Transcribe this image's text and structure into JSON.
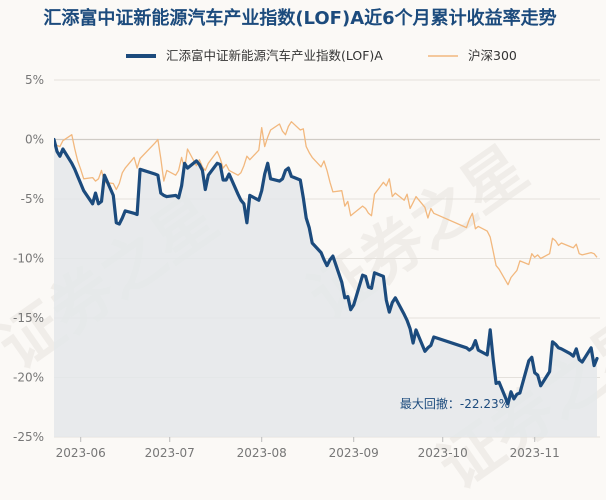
{
  "chart_data": {
    "type": "line",
    "title": "汇添富中证新能源汽车产业指数(LOF)A近6个月累计收益率走势",
    "watermark": "证券之星",
    "ylim": [
      -25,
      5
    ],
    "y_ticks": [
      5,
      0,
      -5,
      -10,
      -15,
      -20,
      -25
    ],
    "y_tick_labels": [
      "5%",
      "0%",
      "-5%",
      "-10%",
      "-15%",
      "-20%",
      "-25%"
    ],
    "x_range": [
      "2023-05-23",
      "2023-11-23"
    ],
    "x_ticks": [
      "2023-06-01",
      "2023-07-01",
      "2023-08-01",
      "2023-09-01",
      "2023-10-01",
      "2023-11-01"
    ],
    "x_tick_labels": [
      "2023-06",
      "2023-07",
      "2023-08",
      "2023-09",
      "2023-10",
      "2023-11"
    ],
    "legend_position": "top-center",
    "grid": "horizontal",
    "colors": {
      "fund": "#1c4b7d",
      "index": "#f2b87e",
      "fill": "#e4e8ea",
      "grid": "#e4e1dc",
      "title": "#1c4b7d",
      "tick": "#777777",
      "annotation": "#1c4b7d"
    },
    "annotation": {
      "label": "最大回撤：-22.23%",
      "value": -22.23,
      "at": "2023-10-23"
    },
    "series": [
      {
        "name": "汇添富中证新能源汽车产业指数(LOF)A",
        "points": [
          [
            "2023-05-23",
            0
          ],
          [
            "2023-05-24",
            -1
          ],
          [
            "2023-05-25",
            -1.4
          ],
          [
            "2023-05-26",
            -0.8
          ],
          [
            "2023-05-29",
            -2
          ],
          [
            "2023-05-30",
            -2.5
          ],
          [
            "2023-05-31",
            -3.1
          ],
          [
            "2023-06-01",
            -3.7
          ],
          [
            "2023-06-02",
            -4.3
          ],
          [
            "2023-06-05",
            -5.4
          ],
          [
            "2023-06-06",
            -4.5
          ],
          [
            "2023-06-07",
            -5.4
          ],
          [
            "2023-06-08",
            -5.2
          ],
          [
            "2023-06-09",
            -3
          ],
          [
            "2023-06-12",
            -4.7
          ],
          [
            "2023-06-13",
            -7
          ],
          [
            "2023-06-14",
            -7.1
          ],
          [
            "2023-06-15",
            -6.6
          ],
          [
            "2023-06-16",
            -6
          ],
          [
            "2023-06-19",
            -6.2
          ],
          [
            "2023-06-20",
            -6.3
          ],
          [
            "2023-06-21",
            -2.5
          ],
          [
            "2023-06-26",
            -2.9
          ],
          [
            "2023-06-27",
            -3
          ],
          [
            "2023-06-28",
            -4.5
          ],
          [
            "2023-06-29",
            -4.7
          ],
          [
            "2023-06-30",
            -4.8
          ],
          [
            "2023-07-03",
            -4.7
          ],
          [
            "2023-07-04",
            -4.9
          ],
          [
            "2023-07-05",
            -3.9
          ],
          [
            "2023-07-06",
            -2
          ],
          [
            "2023-07-07",
            -2.4
          ],
          [
            "2023-07-10",
            -1.8
          ],
          [
            "2023-07-11",
            -2.1
          ],
          [
            "2023-07-12",
            -2.6
          ],
          [
            "2023-07-13",
            -4.2
          ],
          [
            "2023-07-14",
            -3
          ],
          [
            "2023-07-17",
            -2
          ],
          [
            "2023-07-18",
            -2.1
          ],
          [
            "2023-07-19",
            -3.4
          ],
          [
            "2023-07-20",
            -3.4
          ],
          [
            "2023-07-21",
            -2.9
          ],
          [
            "2023-07-24",
            -4.6
          ],
          [
            "2023-07-25",
            -5.1
          ],
          [
            "2023-07-26",
            -5.4
          ],
          [
            "2023-07-27",
            -7
          ],
          [
            "2023-07-28",
            -4.7
          ],
          [
            "2023-07-31",
            -5.1
          ],
          [
            "2023-08-01",
            -4.3
          ],
          [
            "2023-08-02",
            -2.9
          ],
          [
            "2023-08-03",
            -2
          ],
          [
            "2023-08-04",
            -3.3
          ],
          [
            "2023-08-07",
            -3.5
          ],
          [
            "2023-08-08",
            -3.3
          ],
          [
            "2023-08-09",
            -2.6
          ],
          [
            "2023-08-10",
            -2.4
          ],
          [
            "2023-08-11",
            -3.1
          ],
          [
            "2023-08-14",
            -3.4
          ],
          [
            "2023-08-15",
            -4.9
          ],
          [
            "2023-08-16",
            -6.6
          ],
          [
            "2023-08-17",
            -7.4
          ],
          [
            "2023-08-18",
            -8.7
          ],
          [
            "2023-08-21",
            -9.5
          ],
          [
            "2023-08-22",
            -10.1
          ],
          [
            "2023-08-23",
            -10.6
          ],
          [
            "2023-08-24",
            -10.1
          ],
          [
            "2023-08-25",
            -9.8
          ],
          [
            "2023-08-28",
            -12
          ],
          [
            "2023-08-29",
            -13.3
          ],
          [
            "2023-08-30",
            -13.2
          ],
          [
            "2023-08-31",
            -14.3
          ],
          [
            "2023-09-01",
            -13.9
          ],
          [
            "2023-09-04",
            -11.4
          ],
          [
            "2023-09-05",
            -11.5
          ],
          [
            "2023-09-06",
            -12.4
          ],
          [
            "2023-09-07",
            -12.5
          ],
          [
            "2023-09-08",
            -11.2
          ],
          [
            "2023-09-11",
            -11.5
          ],
          [
            "2023-09-12",
            -13.5
          ],
          [
            "2023-09-13",
            -14.5
          ],
          [
            "2023-09-14",
            -13.7
          ],
          [
            "2023-09-15",
            -13.3
          ],
          [
            "2023-09-18",
            -14.7
          ],
          [
            "2023-09-19",
            -15.2
          ],
          [
            "2023-09-20",
            -15.9
          ],
          [
            "2023-09-21",
            -17.1
          ],
          [
            "2023-09-22",
            -16
          ],
          [
            "2023-09-25",
            -17.8
          ],
          [
            "2023-09-26",
            -17.5
          ],
          [
            "2023-09-27",
            -17.3
          ],
          [
            "2023-09-28",
            -16.6
          ],
          [
            "2023-10-09",
            -17.5
          ],
          [
            "2023-10-10",
            -17.7
          ],
          [
            "2023-10-11",
            -17.5
          ],
          [
            "2023-10-12",
            -16.9
          ],
          [
            "2023-10-13",
            -17.7
          ],
          [
            "2023-10-16",
            -18.1
          ],
          [
            "2023-10-17",
            -16
          ],
          [
            "2023-10-18",
            -18.5
          ],
          [
            "2023-10-19",
            -20.5
          ],
          [
            "2023-10-20",
            -20.4
          ],
          [
            "2023-10-23",
            -22.2
          ],
          [
            "2023-10-24",
            -21.2
          ],
          [
            "2023-10-25",
            -21.8
          ],
          [
            "2023-10-26",
            -21.4
          ],
          [
            "2023-10-27",
            -21.3
          ],
          [
            "2023-10-30",
            -18.6
          ],
          [
            "2023-10-31",
            -18.3
          ],
          [
            "2023-11-01",
            -19.6
          ],
          [
            "2023-11-02",
            -19.8
          ],
          [
            "2023-11-03",
            -20.7
          ],
          [
            "2023-11-06",
            -19.5
          ],
          [
            "2023-11-07",
            -17
          ],
          [
            "2023-11-08",
            -17.2
          ],
          [
            "2023-11-09",
            -17.5
          ],
          [
            "2023-11-10",
            -17.6
          ],
          [
            "2023-11-13",
            -18
          ],
          [
            "2023-11-14",
            -18.2
          ],
          [
            "2023-11-15",
            -17.6
          ],
          [
            "2023-11-16",
            -18.5
          ],
          [
            "2023-11-17",
            -18.7
          ],
          [
            "2023-11-20",
            -17.5
          ],
          [
            "2023-11-21",
            -19
          ],
          [
            "2023-11-22",
            -18.4
          ]
        ]
      },
      {
        "name": "沪深300",
        "points": [
          [
            "2023-05-23",
            -0.3
          ],
          [
            "2023-05-24",
            -0.5
          ],
          [
            "2023-05-25",
            -0.6
          ],
          [
            "2023-05-26",
            -0.1
          ],
          [
            "2023-05-29",
            0.4
          ],
          [
            "2023-05-30",
            -0.8
          ],
          [
            "2023-05-31",
            -1.8
          ],
          [
            "2023-06-01",
            -2.5
          ],
          [
            "2023-06-02",
            -3.3
          ],
          [
            "2023-06-05",
            -3.2
          ],
          [
            "2023-06-06",
            -3.5
          ],
          [
            "2023-06-07",
            -3.3
          ],
          [
            "2023-06-08",
            -2.6
          ],
          [
            "2023-06-09",
            -3.6
          ],
          [
            "2023-06-12",
            -3.7
          ],
          [
            "2023-06-13",
            -4.2
          ],
          [
            "2023-06-14",
            -3.7
          ],
          [
            "2023-06-15",
            -2.8
          ],
          [
            "2023-06-16",
            -2.4
          ],
          [
            "2023-06-19",
            -1.5
          ],
          [
            "2023-06-20",
            -2.4
          ],
          [
            "2023-06-21",
            -1.6
          ],
          [
            "2023-06-26",
            -0.3
          ],
          [
            "2023-06-27",
            0
          ],
          [
            "2023-06-28",
            -1.6
          ],
          [
            "2023-06-29",
            -3.5
          ],
          [
            "2023-06-30",
            -2.6
          ],
          [
            "2023-07-03",
            -3
          ],
          [
            "2023-07-04",
            -2.6
          ],
          [
            "2023-07-05",
            -1.5
          ],
          [
            "2023-07-06",
            -2.5
          ],
          [
            "2023-07-07",
            -0.8
          ],
          [
            "2023-07-10",
            -2.2
          ],
          [
            "2023-07-11",
            -1.7
          ],
          [
            "2023-07-12",
            -2.3
          ],
          [
            "2023-07-13",
            -2.6
          ],
          [
            "2023-07-14",
            -2
          ],
          [
            "2023-07-17",
            -1
          ],
          [
            "2023-07-18",
            -1.6
          ],
          [
            "2023-07-19",
            -2.4
          ],
          [
            "2023-07-20",
            -2.1
          ],
          [
            "2023-07-21",
            -2.6
          ],
          [
            "2023-07-24",
            -3
          ],
          [
            "2023-07-25",
            -2.8
          ],
          [
            "2023-07-26",
            -2.2
          ],
          [
            "2023-07-27",
            -1.4
          ],
          [
            "2023-07-28",
            -1.7
          ],
          [
            "2023-07-31",
            -0.9
          ],
          [
            "2023-08-01",
            1
          ],
          [
            "2023-08-02",
            -0.6
          ],
          [
            "2023-08-03",
            0.2
          ],
          [
            "2023-08-04",
            0.8
          ],
          [
            "2023-08-07",
            1.3
          ],
          [
            "2023-08-08",
            0.7
          ],
          [
            "2023-08-09",
            0.4
          ],
          [
            "2023-08-10",
            1.1
          ],
          [
            "2023-08-11",
            1.5
          ],
          [
            "2023-08-14",
            0.8
          ],
          [
            "2023-08-15",
            0.9
          ],
          [
            "2023-08-16",
            -0.6
          ],
          [
            "2023-08-17",
            -1.1
          ],
          [
            "2023-08-18",
            -1.5
          ],
          [
            "2023-08-21",
            -2.3
          ],
          [
            "2023-08-22",
            -1.8
          ],
          [
            "2023-08-23",
            -2.6
          ],
          [
            "2023-08-24",
            -3.6
          ],
          [
            "2023-08-25",
            -4.4
          ],
          [
            "2023-08-28",
            -4.3
          ],
          [
            "2023-08-29",
            -5.6
          ],
          [
            "2023-08-30",
            -5.2
          ],
          [
            "2023-08-31",
            -6.4
          ],
          [
            "2023-09-01",
            -6.2
          ],
          [
            "2023-09-04",
            -5.6
          ],
          [
            "2023-09-05",
            -5.8
          ],
          [
            "2023-09-06",
            -6.2
          ],
          [
            "2023-09-07",
            -6.4
          ],
          [
            "2023-09-08",
            -4.6
          ],
          [
            "2023-09-11",
            -3.6
          ],
          [
            "2023-09-12",
            -3.9
          ],
          [
            "2023-09-13",
            -3.3
          ],
          [
            "2023-09-14",
            -4.8
          ],
          [
            "2023-09-15",
            -4.5
          ],
          [
            "2023-09-18",
            -5.1
          ],
          [
            "2023-09-19",
            -4.6
          ],
          [
            "2023-09-20",
            -5.8
          ],
          [
            "2023-09-21",
            -5.3
          ],
          [
            "2023-09-22",
            -4.8
          ],
          [
            "2023-09-25",
            -5.7
          ],
          [
            "2023-09-26",
            -6.6
          ],
          [
            "2023-09-27",
            -5.8
          ],
          [
            "2023-09-28",
            -6.2
          ],
          [
            "2023-10-09",
            -7.4
          ],
          [
            "2023-10-10",
            -6.7
          ],
          [
            "2023-10-11",
            -6.2
          ],
          [
            "2023-10-12",
            -7.5
          ],
          [
            "2023-10-13",
            -7.3
          ],
          [
            "2023-10-16",
            -7.7
          ],
          [
            "2023-10-17",
            -8.2
          ],
          [
            "2023-10-18",
            -9.4
          ],
          [
            "2023-10-19",
            -10.6
          ],
          [
            "2023-10-20",
            -10.9
          ],
          [
            "2023-10-23",
            -12.2
          ],
          [
            "2023-10-24",
            -11.6
          ],
          [
            "2023-10-25",
            -11.3
          ],
          [
            "2023-10-26",
            -11
          ],
          [
            "2023-10-27",
            -10.2
          ],
          [
            "2023-10-30",
            -10.5
          ],
          [
            "2023-10-31",
            -9.6
          ],
          [
            "2023-11-01",
            -9.9
          ],
          [
            "2023-11-02",
            -9.7
          ],
          [
            "2023-11-03",
            -10
          ],
          [
            "2023-11-06",
            -9.6
          ],
          [
            "2023-11-07",
            -8.3
          ],
          [
            "2023-11-08",
            -8.5
          ],
          [
            "2023-11-09",
            -8.9
          ],
          [
            "2023-11-10",
            -8.7
          ],
          [
            "2023-11-13",
            -9
          ],
          [
            "2023-11-14",
            -9.1
          ],
          [
            "2023-11-15",
            -8.8
          ],
          [
            "2023-11-16",
            -9.6
          ],
          [
            "2023-11-17",
            -9.7
          ],
          [
            "2023-11-20",
            -9.5
          ],
          [
            "2023-11-21",
            -9.6
          ],
          [
            "2023-11-22",
            -9.9
          ]
        ]
      }
    ]
  }
}
